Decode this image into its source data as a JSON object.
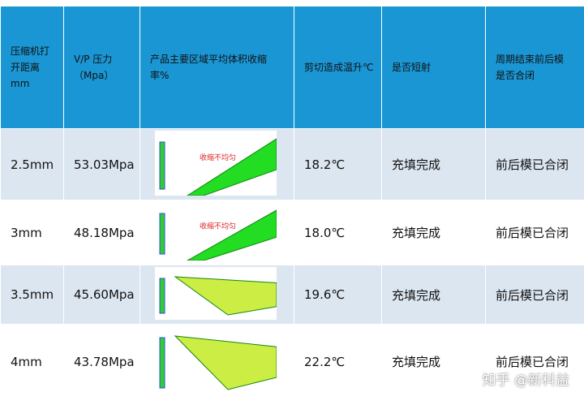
{
  "table": {
    "header": [
      [
        "压缩机打",
        "开距离",
        "mm"
      ],
      [
        "V/P 压力",
        "（Mpa）"
      ],
      [
        "产品主要区域平均体积收缩",
        "率%"
      ],
      [
        "剪切造成温升℃"
      ],
      [
        "是否短射"
      ],
      [
        "周期结束前后模",
        "是否合闭"
      ]
    ],
    "rows": [
      {
        "cells": [
          "2.5mm",
          "53.03Mpa",
          "18.2℃",
          "充填完成",
          "前后模已合闭"
        ],
        "image_note": "收缩不均匀"
      },
      {
        "cells": [
          "3mm",
          "48.18Mpa",
          "18.0℃",
          "充填完成",
          "前后模已合闭"
        ],
        "image_note": "收缩不均匀"
      },
      {
        "cells": [
          "3.5mm",
          "45.60Mpa",
          "19.6℃",
          "充填完成",
          "前后模已合闭"
        ]
      },
      {
        "cells": [
          "4mm",
          "43.78Mpa",
          "22.2℃",
          "充填完成",
          "前后模已合闭"
        ]
      }
    ]
  },
  "watermark": "知乎 @新科益"
}
